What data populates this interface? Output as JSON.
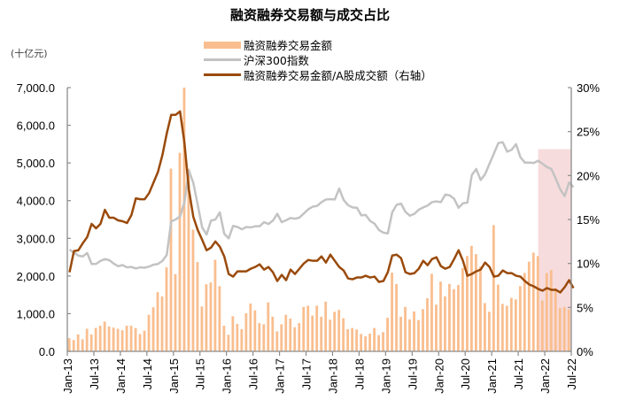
{
  "chart_data": {
    "type": "bar+line",
    "title": "融资融券交易额与成交占比",
    "unit_left": "(十亿元)",
    "xlabel": "",
    "ylabel_left": "十亿元",
    "ylabel_right": "%",
    "ylim_left": [
      0,
      7000
    ],
    "ylim_right": [
      0,
      30
    ],
    "yticks_left": [
      "0.0",
      "1,000.0",
      "2,000.0",
      "3,000.0",
      "4,000.0",
      "5,000.0",
      "6,000.0",
      "7,000.0"
    ],
    "yticks_right": [
      "0%",
      "5%",
      "10%",
      "15%",
      "20%",
      "25%",
      "30%"
    ],
    "xticks": [
      "Jan-13",
      "Jul-13",
      "Jan-14",
      "Jul-14",
      "Jan-15",
      "Jul-15",
      "Jan-16",
      "Jul-16",
      "Jan-17",
      "Jul-17",
      "Jan-18",
      "Jul-18",
      "Jan-19",
      "Jul-19",
      "Jan-20",
      "Jul-20",
      "Jan-21",
      "Jul-21",
      "Jan-22",
      "Jul-22"
    ],
    "x_start": "Jan-13",
    "x_end": "Jul-22",
    "grid": false,
    "legend_position": "top",
    "shaded_region": {
      "from": "Nov-21",
      "to": "Jul-22",
      "color": "#F2C4C6"
    },
    "series": [
      {
        "name": "融资融券交易金额",
        "type": "bar",
        "axis": "left",
        "color": "#F9BE8F",
        "values": [
          350,
          300,
          450,
          320,
          600,
          450,
          620,
          680,
          790,
          660,
          630,
          600,
          560,
          680,
          680,
          620,
          460,
          550,
          970,
          1170,
          1570,
          1460,
          2230,
          4850,
          2050,
          5270,
          7000,
          4850,
          3230,
          2370,
          1190,
          1780,
          1830,
          2430,
          1730,
          680,
          440,
          930,
          730,
          590,
          1010,
          1270,
          1090,
          750,
          720,
          1300,
          920,
          530,
          720,
          970,
          870,
          640,
          750,
          1180,
          1210,
          950,
          1210,
          920,
          1320,
          840,
          1050,
          1100,
          880,
          590,
          620,
          580,
          460,
          400,
          470,
          620,
          430,
          510,
          890,
          2090,
          1790,
          920,
          1180,
          850,
          1060,
          830,
          1120,
          1410,
          2060,
          1240,
          1850,
          1460,
          1790,
          1650,
          1760,
          2210,
          2530,
          2800,
          2580,
          2250,
          1280,
          1050,
          3350,
          1770,
          1260,
          1210,
          1420,
          1380,
          1730,
          2080,
          2380,
          2620,
          2530,
          1350,
          2080,
          2160,
          1680,
          1150,
          1180,
          1120
        ]
      },
      {
        "name": "沪深300指数",
        "type": "line",
        "axis": "left",
        "color": "#C3C3C3",
        "values": [
          2700,
          2620,
          2540,
          2520,
          2610,
          2320,
          2320,
          2400,
          2450,
          2420,
          2330,
          2260,
          2290,
          2230,
          2240,
          2200,
          2230,
          2220,
          2250,
          2300,
          2320,
          2400,
          2560,
          3450,
          3500,
          3580,
          3960,
          4800,
          4470,
          3890,
          3290,
          3100,
          3470,
          3500,
          3690,
          3120,
          3000,
          3330,
          3300,
          3240,
          3300,
          3290,
          3320,
          3320,
          3430,
          3380,
          3470,
          3650,
          3430,
          3480,
          3540,
          3520,
          3550,
          3660,
          3770,
          3840,
          3860,
          3960,
          4030,
          4040,
          4030,
          4320,
          4020,
          3880,
          3820,
          3810,
          3610,
          3620,
          3460,
          3390,
          3220,
          3150,
          3130,
          3690,
          3890,
          3920,
          3700,
          3600,
          3650,
          3760,
          3820,
          3870,
          3960,
          3980,
          3960,
          4160,
          4140,
          4050,
          3810,
          3930,
          3950,
          4680,
          4840,
          4550,
          4700,
          4980,
          5250,
          5530,
          5550,
          5300,
          5350,
          5500,
          5150,
          5010,
          5010,
          5000,
          5060,
          4980,
          4890,
          4840,
          4580,
          4300,
          4120,
          4480,
          4360
        ]
      },
      {
        "name": "融资融券交易金额/A股成交额（右轴）",
        "type": "line",
        "axis": "right",
        "color": "#9A4A0B",
        "values": [
          9.0,
          11.4,
          11.5,
          12.3,
          13.0,
          14.5,
          14.0,
          14.5,
          16.1,
          15.2,
          15.2,
          14.9,
          14.8,
          14.6,
          15.5,
          17.4,
          17.3,
          17.3,
          18.0,
          19.2,
          20.4,
          22.3,
          24.8,
          26.9,
          26.9,
          27.3,
          23.7,
          18.4,
          15.3,
          13.8,
          12.7,
          11.5,
          11.8,
          12.5,
          11.9,
          10.8,
          8.8,
          8.5,
          9.1,
          9.1,
          9.1,
          9.4,
          9.6,
          9.9,
          9.3,
          9.6,
          9.0,
          8.0,
          8.7,
          8.1,
          9.3,
          8.8,
          9.4,
          10.0,
          10.4,
          10.3,
          10.3,
          10.8,
          10.1,
          11.0,
          10.3,
          9.6,
          9.2,
          8.3,
          8.2,
          8.4,
          8.4,
          8.6,
          8.4,
          8.5,
          7.9,
          8.0,
          9.0,
          10.9,
          11.0,
          10.6,
          9.0,
          8.8,
          8.9,
          9.4,
          10.3,
          9.8,
          10.5,
          10.7,
          9.7,
          9.4,
          9.6,
          10.5,
          11.5,
          10.3,
          8.6,
          8.8,
          9.1,
          9.3,
          10.1,
          9.6,
          8.5,
          8.6,
          9.2,
          8.9,
          8.9,
          8.6,
          8.5,
          8.0,
          7.6,
          7.4,
          7.1,
          6.9,
          7.2,
          7.0,
          7.0,
          6.7,
          7.3,
          8.1,
          7.2
        ]
      }
    ]
  },
  "title": "融资融券交易额与成交占比",
  "unit": "(十亿元)",
  "legend": {
    "bar": "融资融券交易金额",
    "gray": "沪深300指数",
    "brown": "融资融券交易金额/A股成交额（右轴）"
  }
}
